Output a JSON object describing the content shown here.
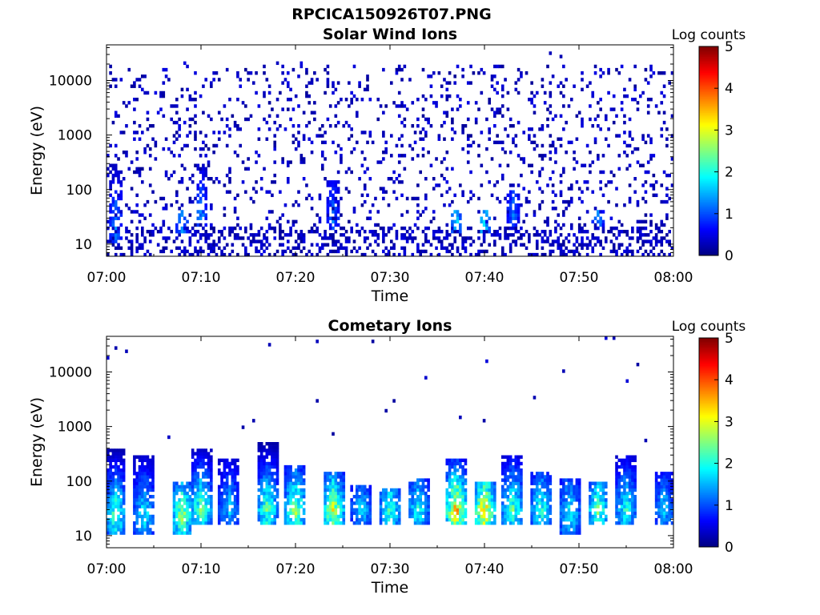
{
  "figure": {
    "filename": "RPCICA150926T07.PNG"
  },
  "chart_data": [
    {
      "type": "heatmap",
      "title": "Solar Wind Ions",
      "xlabel": "Time",
      "ylabel": "Energy (eV)",
      "x_ticks": [
        "07:00",
        "07:10",
        "07:20",
        "07:30",
        "07:40",
        "07:50",
        "08:00"
      ],
      "x_range": [
        "07:00",
        "08:00"
      ],
      "y_scale": "log",
      "y_ticks": [
        10,
        100,
        1000,
        10000
      ],
      "y_tick_labels": [
        "10",
        "100",
        "1000",
        "10000"
      ],
      "y_range_eV": [
        6,
        45000
      ],
      "colorbar": {
        "label": "Log counts",
        "range": [
          0,
          5
        ],
        "ticks": [
          "0",
          "1",
          "2",
          "3",
          "4",
          "5"
        ],
        "colormap": "jet"
      },
      "description_values": {
        "background_log_counts": 0.1,
        "low_energy_bursts": [
          {
            "time": "07:01",
            "energy_eV": [
              10,
              300
            ],
            "peak_log_counts": 1.3
          },
          {
            "time": "07:08",
            "energy_eV": [
              15,
              40
            ],
            "peak_log_counts": 1.4
          },
          {
            "time": "07:10",
            "energy_eV": [
              20,
              300
            ],
            "peak_log_counts": 1.3
          },
          {
            "time": "07:24",
            "energy_eV": [
              15,
              150
            ],
            "peak_log_counts": 1.2
          },
          {
            "time": "07:37",
            "energy_eV": [
              15,
              40
            ],
            "peak_log_counts": 1.7
          },
          {
            "time": "07:40",
            "energy_eV": [
              15,
              40
            ],
            "peak_log_counts": 1.8
          },
          {
            "time": "07:43",
            "energy_eV": [
              20,
              100
            ],
            "peak_log_counts": 1.2
          },
          {
            "time": "07:52",
            "energy_eV": [
              20,
              40
            ],
            "peak_log_counts": 1.3
          }
        ]
      }
    },
    {
      "type": "heatmap",
      "title": "Cometary Ions",
      "xlabel": "Time",
      "ylabel": "Energy (eV)",
      "x_ticks": [
        "07:00",
        "07:10",
        "07:20",
        "07:30",
        "07:40",
        "07:50",
        "08:00"
      ],
      "x_range": [
        "07:00",
        "08:00"
      ],
      "y_scale": "log",
      "y_ticks": [
        10,
        100,
        1000,
        10000
      ],
      "y_tick_labels": [
        "10",
        "100",
        "1000",
        "10000"
      ],
      "y_range_eV": [
        6,
        45000
      ],
      "colorbar": {
        "label": "Log counts",
        "range": [
          0,
          5
        ],
        "ticks": [
          "0",
          "1",
          "2",
          "3",
          "4",
          "5"
        ],
        "colormap": "jet"
      },
      "description_values": {
        "ion_bursts": [
          {
            "time": "07:01",
            "energy_eV": [
              10,
              400
            ],
            "peak_log_counts": 2.3
          },
          {
            "time": "07:04",
            "energy_eV": [
              10,
              300
            ],
            "peak_log_counts": 1.9
          },
          {
            "time": "07:08",
            "energy_eV": [
              10,
              100
            ],
            "peak_log_counts": 2.6
          },
          {
            "time": "07:10",
            "energy_eV": [
              15,
              400
            ],
            "peak_log_counts": 2.4
          },
          {
            "time": "07:13",
            "energy_eV": [
              15,
              250
            ],
            "peak_log_counts": 1.6
          },
          {
            "time": "07:17",
            "energy_eV": [
              15,
              500
            ],
            "peak_log_counts": 2.3
          },
          {
            "time": "07:20",
            "energy_eV": [
              15,
              200
            ],
            "peak_log_counts": 2.6
          },
          {
            "time": "07:24",
            "energy_eV": [
              15,
              150
            ],
            "peak_log_counts": 2.8
          },
          {
            "time": "07:27",
            "energy_eV": [
              15,
              80
            ],
            "peak_log_counts": 1.7
          },
          {
            "time": "07:30",
            "energy_eV": [
              15,
              70
            ],
            "peak_log_counts": 2.2
          },
          {
            "time": "07:33",
            "energy_eV": [
              15,
              120
            ],
            "peak_log_counts": 2.0
          },
          {
            "time": "07:37",
            "energy_eV": [
              15,
              250
            ],
            "peak_log_counts": 3.3
          },
          {
            "time": "07:40",
            "energy_eV": [
              15,
              100
            ],
            "peak_log_counts": 3.2
          },
          {
            "time": "07:43",
            "energy_eV": [
              15,
              300
            ],
            "peak_log_counts": 2.3
          },
          {
            "time": "07:46",
            "energy_eV": [
              15,
              150
            ],
            "peak_log_counts": 2.1
          },
          {
            "time": "07:49",
            "energy_eV": [
              10,
              120
            ],
            "peak_log_counts": 1.9
          },
          {
            "time": "07:52",
            "energy_eV": [
              15,
              100
            ],
            "peak_log_counts": 2.4
          },
          {
            "time": "07:55",
            "energy_eV": [
              15,
              300
            ],
            "peak_log_counts": 2.0
          },
          {
            "time": "07:59",
            "energy_eV": [
              15,
              150
            ],
            "peak_log_counts": 1.6
          }
        ]
      }
    }
  ]
}
